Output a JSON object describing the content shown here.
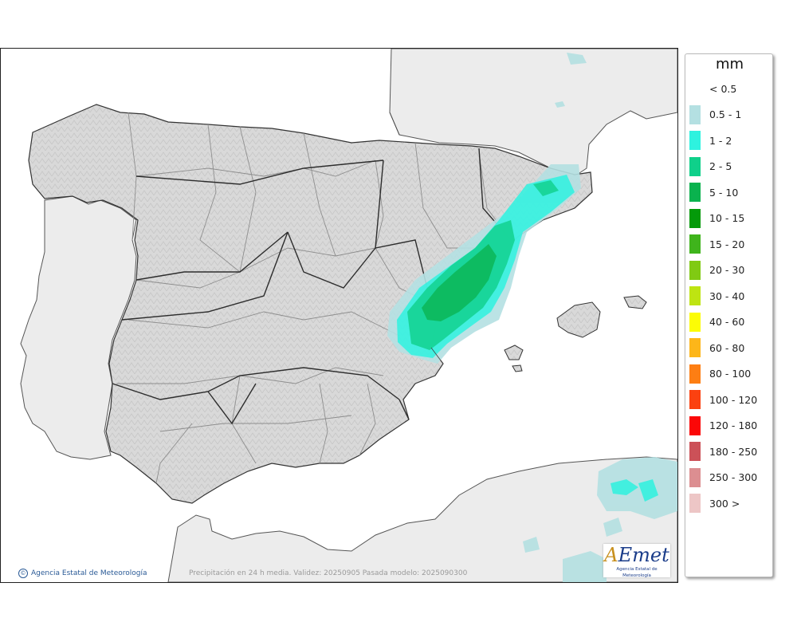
{
  "legend": {
    "unit": "mm",
    "items": [
      {
        "label": "< 0.5",
        "color": "#ffffff"
      },
      {
        "label": "0.5 - 1",
        "color": "#b4e0e2"
      },
      {
        "label": "1 - 2",
        "color": "#2ef2df"
      },
      {
        "label": "2 - 5",
        "color": "#0fd08a"
      },
      {
        "label": "5 - 10",
        "color": "#0ab24e"
      },
      {
        "label": "10 - 15",
        "color": "#049a0a"
      },
      {
        "label": "15 - 20",
        "color": "#3fb41c"
      },
      {
        "label": "20 - 30",
        "color": "#80ca13"
      },
      {
        "label": "30 - 40",
        "color": "#bee412"
      },
      {
        "label": "40 - 60",
        "color": "#fcfc05"
      },
      {
        "label": "60 - 80",
        "color": "#fdb619"
      },
      {
        "label": "80 - 100",
        "color": "#fd7e13"
      },
      {
        "label": "100 - 120",
        "color": "#fb4110"
      },
      {
        "label": "120 - 180",
        "color": "#fb0707"
      },
      {
        "label": "180 - 250",
        "color": "#cc5158"
      },
      {
        "label": "250 - 300",
        "color": "#dc8e91"
      },
      {
        "label": "300 >",
        "color": "#edc6c6"
      }
    ]
  },
  "footer": {
    "agency": "Agencia Estatal de Meteorología",
    "validity": "Precipitación en 24 h media. Validez: 20250905 Pasada modelo: 2025090300"
  },
  "logo": {
    "main": "AEmet",
    "sub": "Agencia Estatal de Meteorología"
  }
}
